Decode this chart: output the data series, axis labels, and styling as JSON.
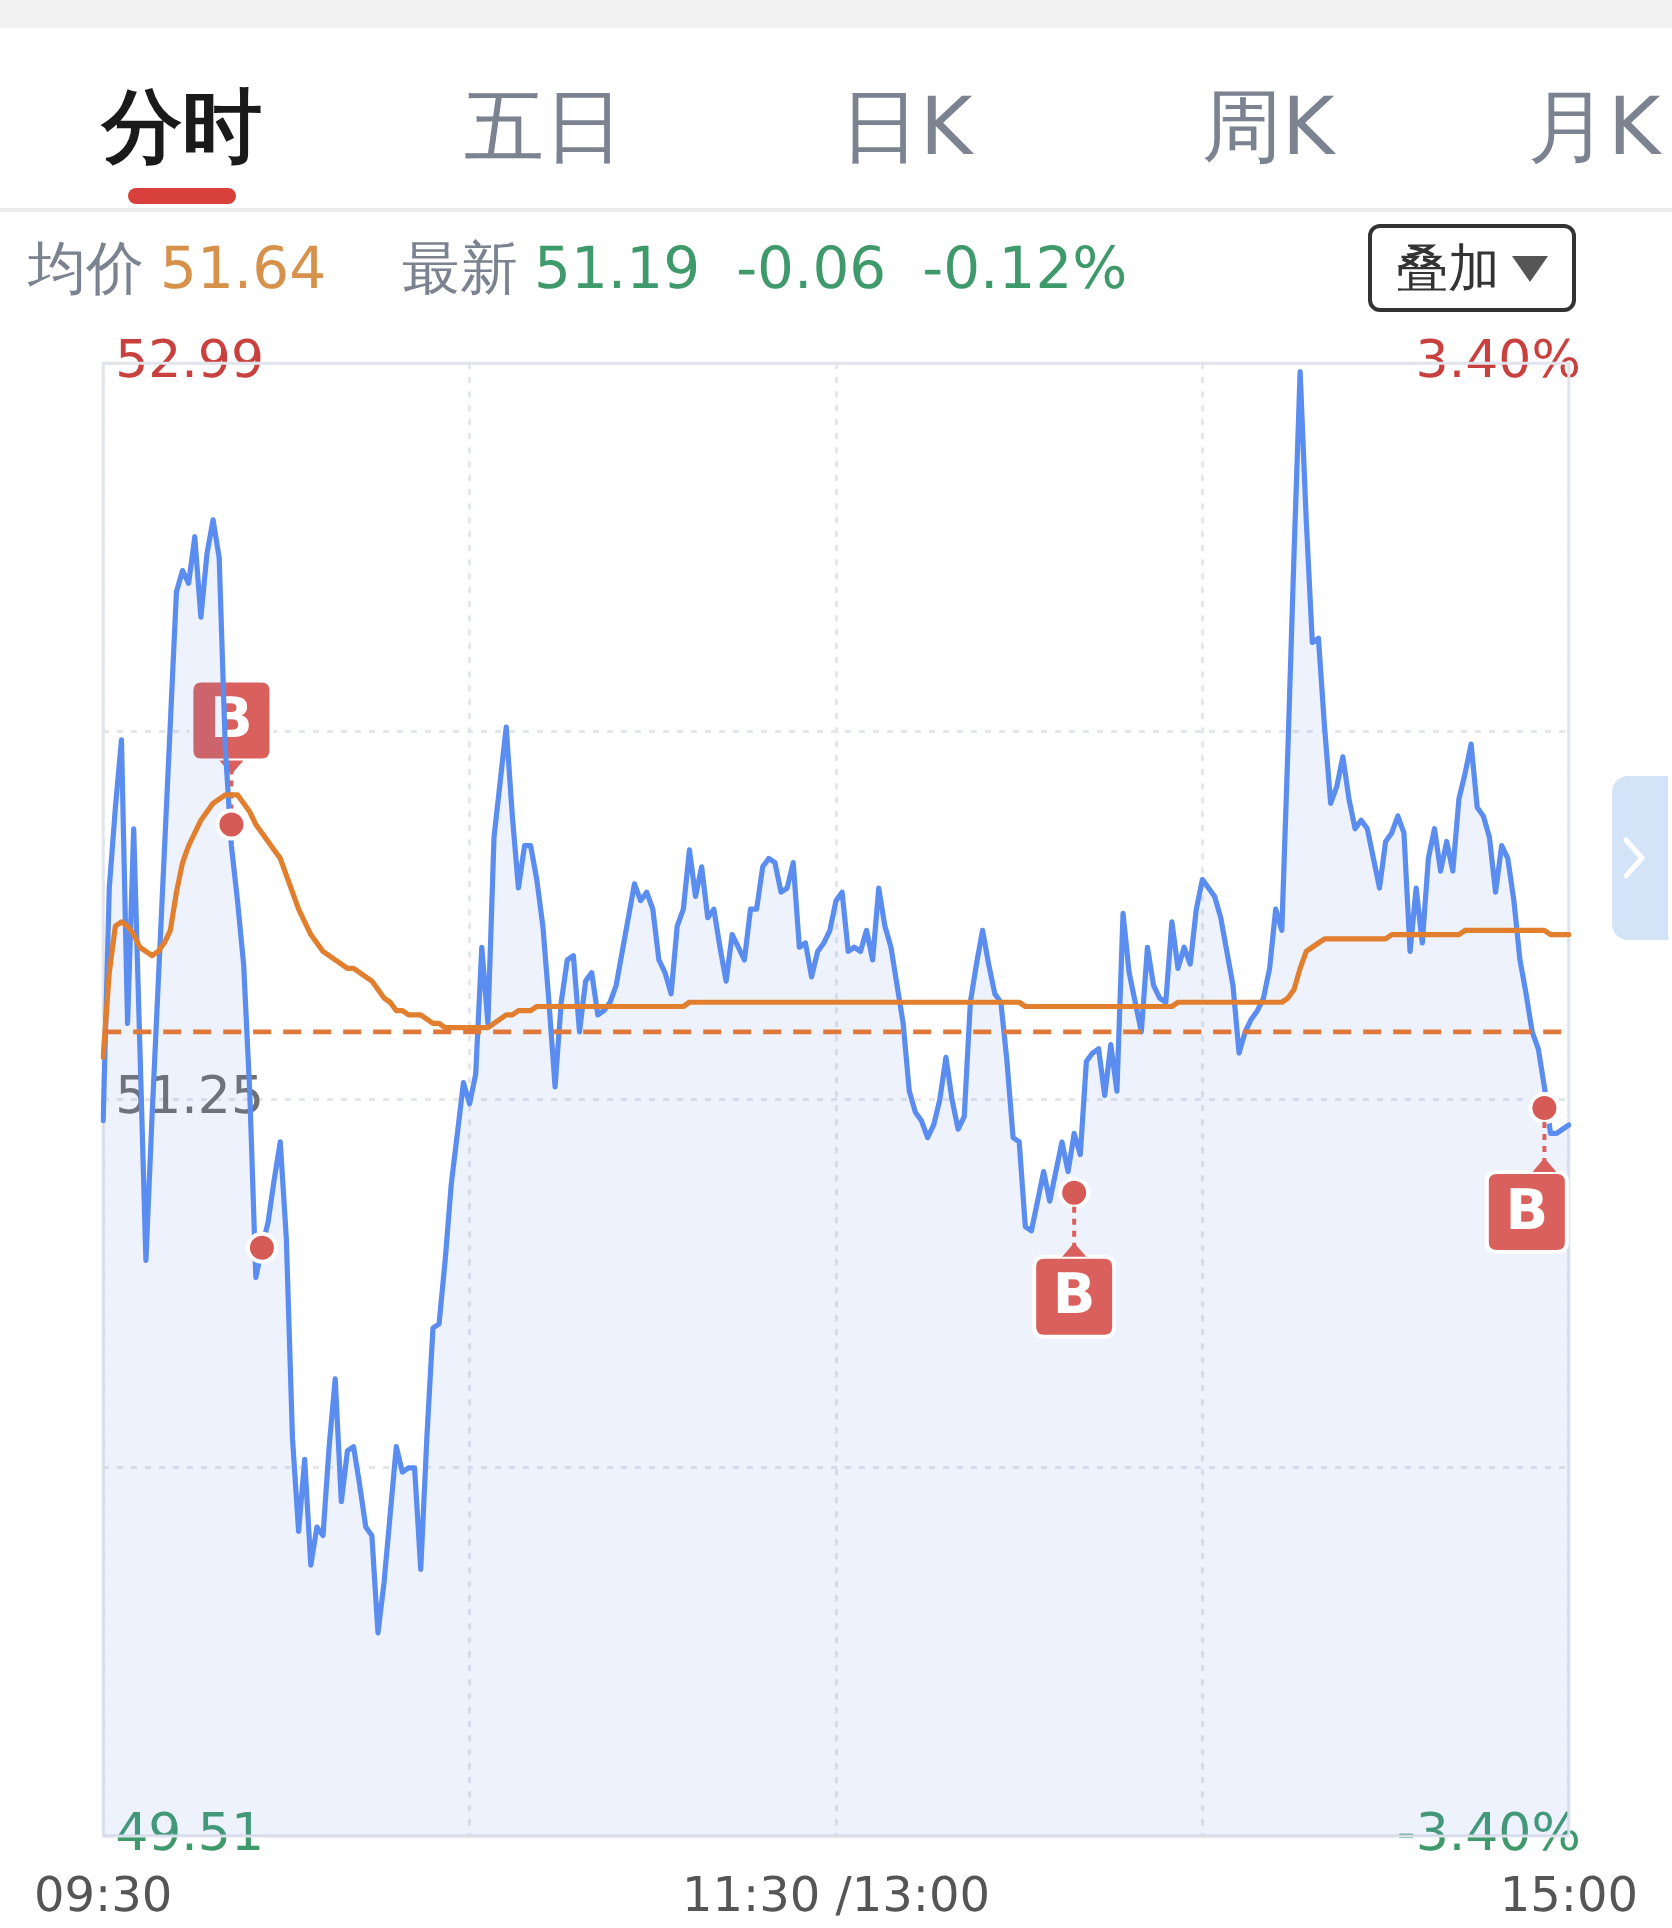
{
  "chart_data": {
    "type": "line",
    "subtitle": "均价 51.64 最新 51.19 -0.06 -0.12%",
    "annotations": [
      "分时",
      "五日",
      "日K",
      "周K",
      "月K",
      "叠加",
      {
        "text": "B",
        "y": 51.9
      },
      {
        "text": "B",
        "y": 51.03
      },
      {
        "text": "B",
        "y": 51.23
      }
    ],
    "categories": [
      "09:30",
      null,
      null,
      null,
      null,
      null,
      null,
      null,
      null,
      null,
      null,
      null,
      null,
      null,
      null,
      null,
      null,
      null,
      null,
      null,
      null,
      null,
      null,
      null,
      null,
      null,
      null,
      null,
      null,
      null,
      null,
      null,
      null,
      null,
      null,
      null,
      null,
      null,
      null,
      null,
      null,
      null,
      null,
      null,
      null,
      null,
      null,
      null,
      null,
      null,
      null,
      null,
      null,
      null,
      null,
      null,
      null,
      null,
      null,
      null,
      null,
      null,
      null,
      null,
      null,
      null,
      null,
      null,
      null,
      null,
      null,
      null,
      null,
      null,
      null,
      null,
      null,
      null,
      null,
      null,
      null,
      null,
      null,
      null,
      null,
      null,
      null,
      null,
      null,
      null,
      null,
      null,
      null,
      null,
      null,
      null,
      null,
      null,
      null,
      null,
      null,
      null,
      null,
      null,
      null,
      null,
      null,
      null,
      null,
      null,
      null,
      null,
      null,
      null,
      null,
      null,
      null,
      null,
      null,
      null,
      "11:30 /13:00",
      null,
      null,
      null,
      null,
      null,
      null,
      null,
      null,
      null,
      null,
      null,
      null,
      null,
      null,
      null,
      null,
      null,
      null,
      null,
      null,
      null,
      null,
      null,
      null,
      null,
      null,
      null,
      null,
      null,
      null,
      null,
      null,
      null,
      null,
      null,
      null,
      null,
      null,
      null,
      null,
      null,
      null,
      null,
      null,
      null,
      null,
      null,
      null,
      null,
      null,
      null,
      null,
      null,
      null,
      null,
      null,
      null,
      null,
      null,
      null,
      null,
      null,
      null,
      null,
      null,
      null,
      null,
      null,
      null,
      null,
      null,
      null,
      null,
      null,
      null,
      null,
      null,
      null,
      null,
      null,
      null,
      null,
      null,
      null,
      null,
      null,
      null,
      null,
      null,
      null,
      null,
      null,
      null,
      null,
      null,
      null,
      null,
      null,
      null,
      null,
      null,
      null,
      null,
      null,
      null,
      null,
      null,
      null,
      null,
      null,
      null,
      null,
      null,
      null,
      null,
      null,
      null,
      null,
      null,
      "15:00"
    ],
    "ylim": [
      49.51,
      52.99
    ],
    "yticks": [
      52.99,
      {
        "value": 52.12,
        "label": null
      },
      51.25,
      {
        "value": 50.38,
        "label": null
      },
      49.51
    ],
    "y2lim": [
      -3.4,
      3.4
    ],
    "y2ticks": [
      {
        "value": 3.4,
        "label": "3.40%"
      },
      {
        "value": -3.4,
        "label": "-3.40%"
      }
    ],
    "grid": true,
    "ref_lines": [
      {
        "axis": "y",
        "value": 51.41,
        "color": "#e0783a",
        "line_style": "dashed"
      }
    ],
    "series": [
      {
        "type": "area",
        "color": "#5a8def",
        "values": [
          51.2,
          51.75,
          51.94,
          52.1,
          51.43,
          51.89,
          51.38,
          50.87,
          51.21,
          51.52,
          51.83,
          52.14,
          52.45,
          52.5,
          52.47,
          52.58,
          52.39,
          52.54,
          52.62,
          52.53,
          52.08,
          51.85,
          51.72,
          51.57,
          51.27,
          50.83,
          50.9,
          50.96,
          51.06,
          51.15,
          50.92,
          50.45,
          50.23,
          50.4,
          50.15,
          50.24,
          50.22,
          50.43,
          50.59,
          50.3,
          50.42,
          50.43,
          50.34,
          50.24,
          50.22,
          49.99,
          50.11,
          50.27,
          50.43,
          50.37,
          50.38,
          50.38,
          50.14,
          50.45,
          50.71,
          50.72,
          50.87,
          51.05,
          51.17,
          51.29,
          51.24,
          51.31,
          51.61,
          51.43,
          51.87,
          52.0,
          52.13,
          51.92,
          51.75,
          51.85,
          51.85,
          51.77,
          51.66,
          51.48,
          51.28,
          51.48,
          51.58,
          51.59,
          51.41,
          51.53,
          51.55,
          51.45,
          51.46,
          51.48,
          51.52,
          51.6,
          51.68,
          51.76,
          51.72,
          51.74,
          51.7,
          51.58,
          51.55,
          51.5,
          51.66,
          51.7,
          51.84,
          51.73,
          51.8,
          51.68,
          51.7,
          51.61,
          51.53,
          51.64,
          51.61,
          51.58,
          51.7,
          51.7,
          51.8,
          51.82,
          51.81,
          51.74,
          51.75,
          51.81,
          51.61,
          51.62,
          51.54,
          51.6,
          51.62,
          51.65,
          51.72,
          51.74,
          51.6,
          51.61,
          51.6,
          51.65,
          51.58,
          51.75,
          51.66,
          51.61,
          51.52,
          51.43,
          51.27,
          51.22,
          51.2,
          51.16,
          51.19,
          51.25,
          51.35,
          51.25,
          51.18,
          51.21,
          51.48,
          51.57,
          51.65,
          51.57,
          51.5,
          51.48,
          51.34,
          51.16,
          51.15,
          50.95,
          50.94,
          51.01,
          51.08,
          51.01,
          51.08,
          51.15,
          51.08,
          51.17,
          51.12,
          51.34,
          51.36,
          51.37,
          51.26,
          51.38,
          51.27,
          51.69,
          51.55,
          51.48,
          51.41,
          51.61,
          51.52,
          51.49,
          51.48,
          51.67,
          51.56,
          51.61,
          51.57,
          51.7,
          51.77,
          51.75,
          51.73,
          51.68,
          51.6,
          51.52,
          51.36,
          51.41,
          51.44,
          51.46,
          51.49,
          51.56,
          51.7,
          51.65,
          52.08,
          52.54,
          52.97,
          52.62,
          52.33,
          52.34,
          52.13,
          51.95,
          51.99,
          52.06,
          51.96,
          51.89,
          51.91,
          51.89,
          51.82,
          51.75,
          51.86,
          51.88,
          51.92,
          51.88,
          51.6,
          51.75,
          51.62,
          51.82,
          51.89,
          51.79,
          51.86,
          51.79,
          51.96,
          52.02,
          52.09,
          51.94,
          51.92,
          51.87,
          51.74,
          51.85,
          51.82,
          51.72,
          51.58,
          51.5,
          51.41,
          51.37,
          51.28,
          51.17,
          51.17,
          51.18,
          51.19
        ]
      },
      {
        "type": "line",
        "color": "#e27f2f",
        "values": [
          51.35,
          51.55,
          51.66,
          51.67,
          51.66,
          51.64,
          51.61,
          51.6,
          51.59,
          51.6,
          51.62,
          51.65,
          51.74,
          51.81,
          51.85,
          51.88,
          51.91,
          51.93,
          51.95,
          51.96,
          51.97,
          51.97,
          51.97,
          51.95,
          51.93,
          51.9,
          51.88,
          51.86,
          51.84,
          51.82,
          51.78,
          51.74,
          51.7,
          51.67,
          51.64,
          51.62,
          51.6,
          51.59,
          51.58,
          51.57,
          51.56,
          51.56,
          51.55,
          51.54,
          51.53,
          51.51,
          51.49,
          51.48,
          51.46,
          51.46,
          51.45,
          51.45,
          51.45,
          51.44,
          51.43,
          51.43,
          51.42,
          51.42,
          51.42,
          51.42,
          51.42,
          51.42,
          51.42,
          51.42,
          51.43,
          51.44,
          51.45,
          51.45,
          51.46,
          51.46,
          51.46,
          51.47,
          51.47,
          51.47,
          51.47,
          51.47,
          51.47,
          51.47,
          51.47,
          51.47,
          51.47,
          51.47,
          51.47,
          51.47,
          51.47,
          51.47,
          51.47,
          51.47,
          51.47,
          51.47,
          51.47,
          51.47,
          51.47,
          51.47,
          51.47,
          51.47,
          51.48,
          51.48,
          51.48,
          51.48,
          51.48,
          51.48,
          51.48,
          51.48,
          51.48,
          51.48,
          51.48,
          51.48,
          51.48,
          51.48,
          51.48,
          51.48,
          51.48,
          51.48,
          51.48,
          51.48,
          51.48,
          51.48,
          51.48,
          51.48,
          51.48,
          51.48,
          51.48,
          51.48,
          51.48,
          51.48,
          51.48,
          51.48,
          51.48,
          51.48,
          51.48,
          51.48,
          51.48,
          51.48,
          51.48,
          51.48,
          51.48,
          51.48,
          51.48,
          51.48,
          51.48,
          51.48,
          51.48,
          51.48,
          51.48,
          51.48,
          51.48,
          51.48,
          51.48,
          51.48,
          51.48,
          51.47,
          51.47,
          51.47,
          51.47,
          51.47,
          51.47,
          51.47,
          51.47,
          51.47,
          51.47,
          51.47,
          51.47,
          51.47,
          51.47,
          51.47,
          51.47,
          51.47,
          51.47,
          51.47,
          51.47,
          51.47,
          51.47,
          51.47,
          51.47,
          51.47,
          51.48,
          51.48,
          51.48,
          51.48,
          51.48,
          51.48,
          51.48,
          51.48,
          51.48,
          51.48,
          51.48,
          51.48,
          51.48,
          51.48,
          51.48,
          51.48,
          51.48,
          51.48,
          51.49,
          51.51,
          51.56,
          51.6,
          51.61,
          51.62,
          51.63,
          51.63,
          51.63,
          51.63,
          51.63,
          51.63,
          51.63,
          51.63,
          51.63,
          51.63,
          51.63,
          51.64,
          51.64,
          51.64,
          51.64,
          51.64,
          51.64,
          51.64,
          51.64,
          51.64,
          51.64,
          51.64,
          51.64,
          51.65,
          51.65,
          51.65,
          51.65,
          51.65,
          51.65,
          51.65,
          51.65,
          51.65,
          51.65,
          51.65,
          51.65,
          51.65,
          51.65,
          51.64,
          51.64,
          51.64,
          51.64
        ]
      },
      {
        "type": "scatter",
        "color": "#d65a55",
        "marker": "circle",
        "values": [
          null,
          null,
          null,
          null,
          null,
          null,
          null,
          null,
          null,
          null,
          null,
          null,
          null,
          null,
          null,
          null,
          null,
          null,
          null,
          null,
          null,
          51.9,
          null,
          null,
          null,
          null,
          50.9,
          null,
          null,
          null,
          null,
          null,
          null,
          null,
          null,
          null,
          null,
          null,
          null,
          null,
          null,
          null,
          null,
          null,
          null,
          null,
          null,
          null,
          null,
          null,
          null,
          null,
          null,
          null,
          null,
          null,
          null,
          null,
          null,
          null,
          null,
          null,
          null,
          null,
          null,
          null,
          null,
          null,
          null,
          null,
          null,
          null,
          null,
          null,
          null,
          null,
          null,
          null,
          null,
          null,
          null,
          null,
          null,
          null,
          null,
          null,
          null,
          null,
          null,
          null,
          null,
          null,
          null,
          null,
          null,
          null,
          null,
          null,
          null,
          null,
          null,
          null,
          null,
          null,
          null,
          null,
          null,
          null,
          null,
          null,
          null,
          null,
          null,
          null,
          null,
          null,
          null,
          null,
          null,
          null,
          null,
          null,
          null,
          null,
          null,
          null,
          null,
          null,
          null,
          null,
          null,
          null,
          null,
          null,
          null,
          null,
          null,
          null,
          null,
          null,
          null,
          null,
          null,
          null,
          null,
          null,
          null,
          null,
          null,
          null,
          null,
          null,
          null,
          null,
          null,
          null,
          null,
          null,
          null,
          51.03,
          null,
          null,
          null,
          null,
          null,
          null,
          null,
          null,
          null,
          null,
          null,
          null,
          null,
          null,
          null,
          null,
          null,
          null,
          null,
          null,
          null,
          null,
          null,
          null,
          null,
          null,
          null,
          null,
          null,
          null,
          null,
          null,
          null,
          null,
          null,
          null,
          null,
          null,
          null,
          null,
          null,
          null,
          null,
          null,
          null,
          null,
          null,
          null,
          null,
          null,
          null,
          null,
          null,
          null,
          null,
          null,
          null,
          null,
          null,
          null,
          null,
          null,
          null,
          null,
          null,
          null,
          null,
          null,
          null,
          null,
          null,
          null,
          null,
          null,
          null,
          null,
          51.23,
          null,
          null,
          null,
          null
        ]
      }
    ]
  }
}
